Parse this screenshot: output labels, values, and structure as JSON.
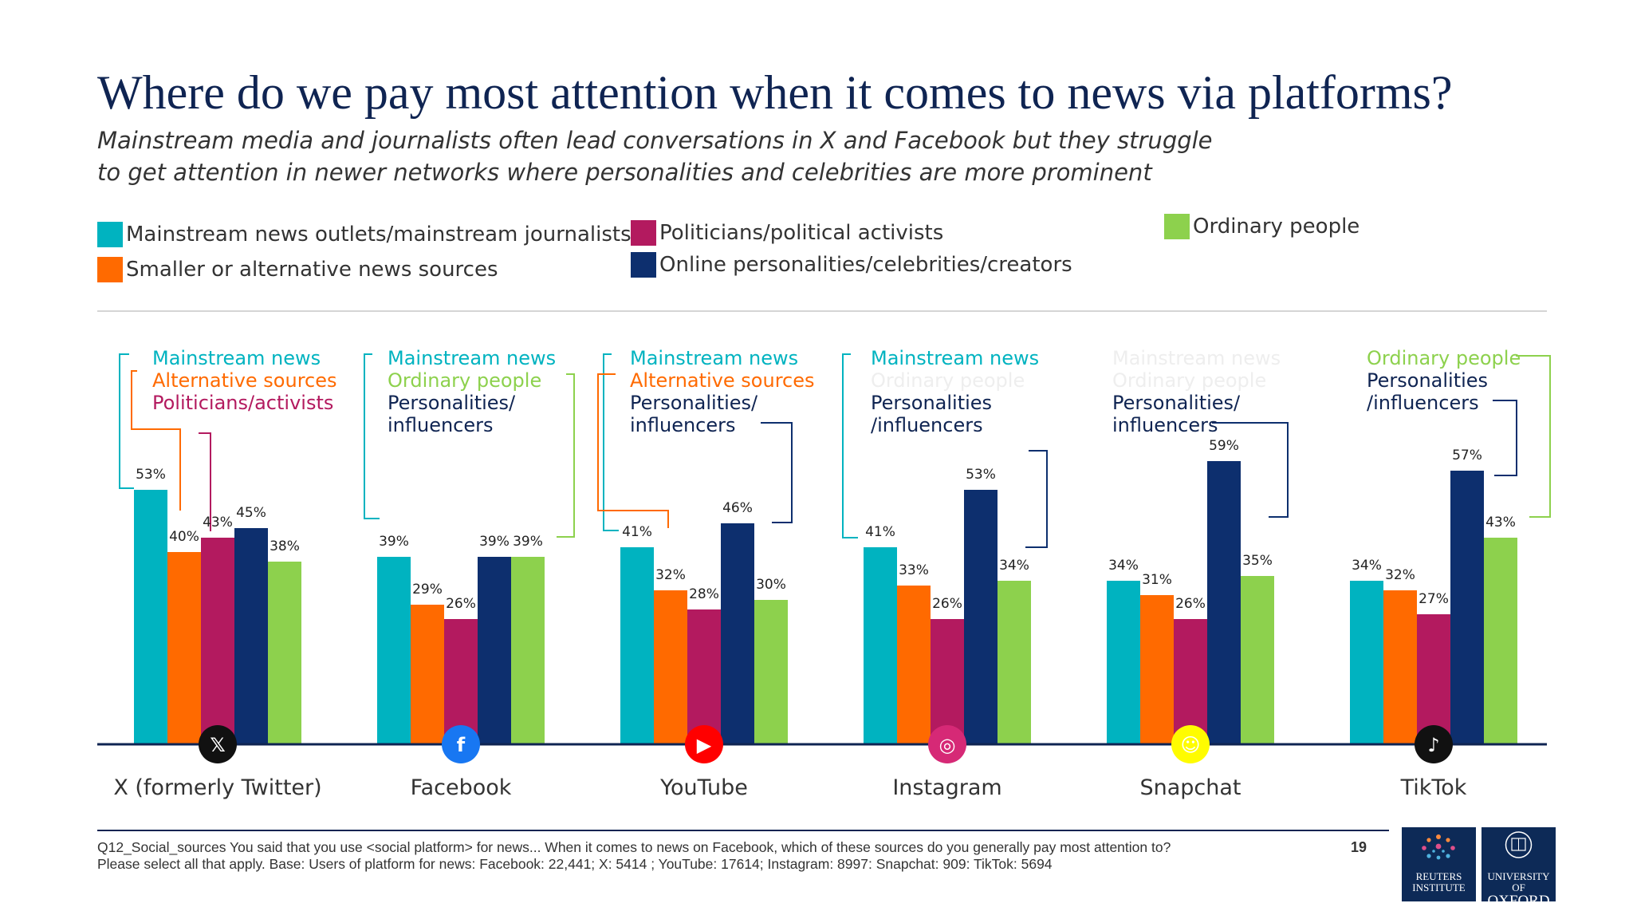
{
  "title": "Where do we pay most attention when it comes to news via platforms?",
  "subtitle_line1": "Mainstream media and journalists often lead conversations in X and Facebook but they struggle",
  "subtitle_line2": "to get attention in newer networks where personalities and celebrities are more prominent",
  "colors": {
    "mainstream": "#00b3c0",
    "alternative": "#ff6a00",
    "politicians": "#b31a5f",
    "personalities": "#0d2f6e",
    "ordinary": "#8dd14d",
    "faded": "#eeeeee"
  },
  "legend": [
    {
      "key": "mainstream",
      "label": "Mainstream news outlets/mainstream journalists"
    },
    {
      "key": "alternative",
      "label": "Smaller or alternative news sources"
    },
    {
      "key": "politicians",
      "label": "Politicians/political activists"
    },
    {
      "key": "personalities",
      "label": "Online personalities/celebrities/creators"
    },
    {
      "key": "ordinary",
      "label": "Ordinary people"
    }
  ],
  "chart_data": {
    "type": "bar",
    "categories": [
      "X (formerly Twitter)",
      "Facebook",
      "YouTube",
      "Instagram",
      "Snapchat",
      "TikTok"
    ],
    "series": [
      {
        "name": "Mainstream news outlets/mainstream journalists",
        "key": "mainstream",
        "values": [
          53,
          39,
          41,
          41,
          34,
          34
        ]
      },
      {
        "name": "Smaller or alternative news sources",
        "key": "alternative",
        "values": [
          40,
          29,
          32,
          33,
          31,
          32
        ]
      },
      {
        "name": "Politicians/political activists",
        "key": "politicians",
        "values": [
          43,
          26,
          28,
          26,
          26,
          27
        ]
      },
      {
        "name": "Online personalities/celebrities/creators",
        "key": "personalities",
        "values": [
          45,
          39,
          46,
          53,
          59,
          57
        ]
      },
      {
        "name": "Ordinary people",
        "key": "ordinary",
        "values": [
          38,
          39,
          30,
          34,
          35,
          43
        ]
      }
    ],
    "value_suffix": "%",
    "ylim": [
      0,
      70
    ],
    "platform_icons": [
      "x-icon",
      "facebook-icon",
      "youtube-icon",
      "instagram-icon",
      "snapchat-icon",
      "tiktok-icon"
    ],
    "annotations": [
      [
        {
          "text": "Mainstream news",
          "color": "mainstream"
        },
        {
          "text": "Alternative sources",
          "color": "alternative"
        },
        {
          "text": "Politicians/activists",
          "color": "politicians"
        }
      ],
      [
        {
          "text": "Mainstream news",
          "color": "mainstream"
        },
        {
          "text": "Ordinary people",
          "color": "ordinary"
        },
        {
          "text": "Personalities/",
          "color": "text"
        },
        {
          "text": "influencers",
          "color": "text"
        }
      ],
      [
        {
          "text": "Mainstream news",
          "color": "mainstream"
        },
        {
          "text": "Alternative sources",
          "color": "alternative"
        },
        {
          "text": "Personalities/",
          "color": "text"
        },
        {
          "text": "influencers",
          "color": "text"
        }
      ],
      [
        {
          "text": "Mainstream news",
          "color": "mainstream"
        },
        {
          "text": "Ordinary people",
          "color": "faded"
        },
        {
          "text": "Personalities",
          "color": "text"
        },
        {
          "text": "/influencers",
          "color": "text"
        }
      ],
      [
        {
          "text": "Mainstream news",
          "color": "faded"
        },
        {
          "text": "Ordinary people",
          "color": "faded"
        },
        {
          "text": "Personalities/",
          "color": "text"
        },
        {
          "text": "influencers",
          "color": "text"
        }
      ],
      [
        {
          "text": "Ordinary people",
          "color": "ordinary"
        },
        {
          "text": "Personalities",
          "color": "text"
        },
        {
          "text": "/influencers",
          "color": "text"
        }
      ]
    ]
  },
  "footnote_line1": "Q12_Social_sources You said that you use <social platform> for news... When it comes to news on Facebook, which of these sources do you generally pay most attention to?",
  "footnote_line2": "Please select all that apply. Base: Users of platform for news: Facebook: 22,441;  X: 5414 ; YouTube: 17614; Instagram: 8997: Snapchat: 909: TikTok: 5694",
  "page_number": "19",
  "logo_reuters": {
    "line1": "REUTERS",
    "line2": "INSTITUTE"
  },
  "logo_oxford": {
    "line1": "UNIVERSITY OF",
    "line2": "OXFORD"
  }
}
